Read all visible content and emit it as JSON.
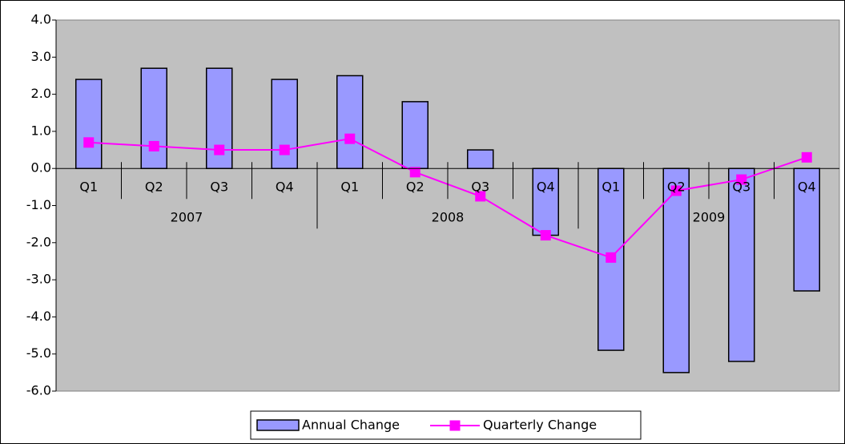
{
  "chart_data": {
    "type": "bar_line",
    "categories": [
      "Q1",
      "Q2",
      "Q3",
      "Q4",
      "Q1",
      "Q2",
      "Q3",
      "Q4",
      "Q1",
      "Q2",
      "Q3",
      "Q4"
    ],
    "groups": [
      {
        "label": "2007",
        "span": 4
      },
      {
        "label": "2008",
        "span": 4
      },
      {
        "label": "2009",
        "span": 4
      }
    ],
    "series": [
      {
        "name": "Annual Change",
        "type": "bar",
        "color": "#9999ff",
        "values": [
          2.4,
          2.7,
          2.7,
          2.4,
          2.5,
          1.8,
          0.5,
          -1.8,
          -4.9,
          -5.5,
          -5.2,
          -3.3
        ]
      },
      {
        "name": "Quarterly Change",
        "type": "line",
        "color": "#ff00ff",
        "values": [
          0.7,
          0.6,
          0.5,
          0.5,
          0.8,
          -0.1,
          -0.75,
          -1.8,
          -2.4,
          -0.6,
          -0.3,
          0.3
        ]
      }
    ],
    "ylim": [
      -6,
      4
    ],
    "yticks": [
      {
        "value": -6,
        "label": "-6.0"
      },
      {
        "value": -5,
        "label": "-5.0"
      },
      {
        "value": -4,
        "label": "-4.0"
      },
      {
        "value": -3,
        "label": "-3.0"
      },
      {
        "value": -2,
        "label": "-2.0"
      },
      {
        "value": -1,
        "label": "-1.0"
      },
      {
        "value": 0,
        "label": "0.0"
      },
      {
        "value": 1,
        "label": "1.0"
      },
      {
        "value": 2,
        "label": "2.0"
      },
      {
        "value": 3,
        "label": "3.0"
      },
      {
        "value": 4,
        "label": "4.0"
      }
    ],
    "legend": "bottom",
    "plot_background": "#c0c0c0"
  }
}
